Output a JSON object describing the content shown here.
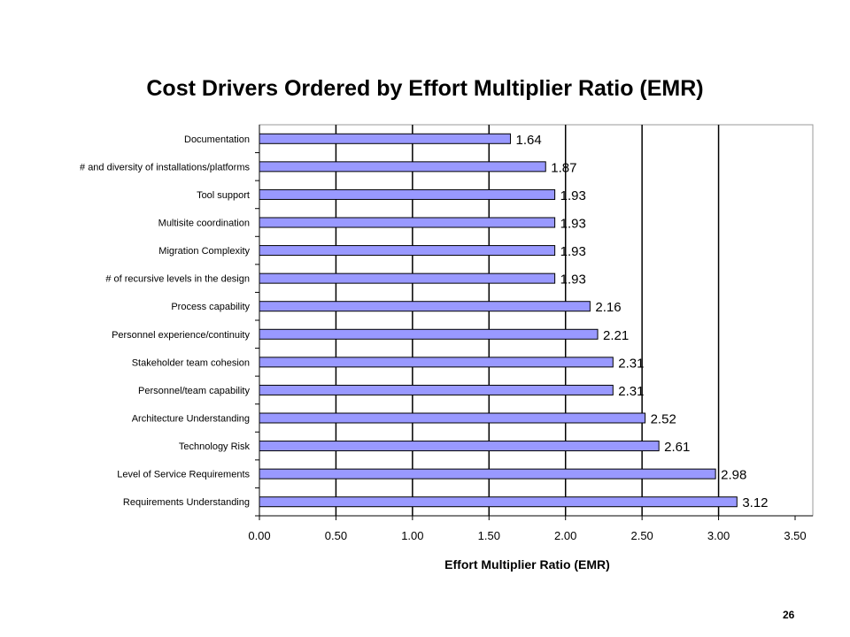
{
  "slide": {
    "title": "Cost Drivers Ordered by Effort Multiplier Ratio (EMR)",
    "page_number": "26"
  },
  "colors": {
    "bar_fill": "#9999ff",
    "bar_stroke": "#000000",
    "plot_background": "#ffffff",
    "gridline": "#000000",
    "plot_border": "#999999"
  },
  "chart_data": {
    "type": "bar",
    "orientation": "horizontal",
    "categories": [
      "Documentation",
      "# and diversity of installations/platforms",
      "Tool support",
      "Multisite coordination",
      "Migration Complexity",
      "# of recursive levels in the design",
      "Process capability",
      "Personnel experience/continuity",
      "Stakeholder team cohesion",
      "Personnel/team capability",
      "Architecture Understanding",
      "Technology Risk",
      "Level of Service Requirements",
      "Requirements Understanding"
    ],
    "values": [
      1.64,
      1.87,
      1.93,
      1.93,
      1.93,
      1.93,
      2.16,
      2.21,
      2.31,
      2.31,
      2.52,
      2.61,
      2.98,
      3.12
    ],
    "value_labels": [
      "1.64",
      "1.87",
      "1.93",
      "1.93",
      "1.93",
      "1.93",
      "2.16",
      "2.21",
      "2.31",
      "2.31",
      "2.52",
      "2.61",
      "2.98",
      "3.12"
    ],
    "xlabel": "Effort Multiplier Ratio (EMR)",
    "ylabel": "",
    "xlim": [
      0,
      3.5
    ],
    "xticks": [
      "0.00",
      "0.50",
      "1.00",
      "1.50",
      "2.00",
      "2.50",
      "3.00",
      "3.50"
    ],
    "grid": "vertical major gridlines",
    "legend": "none"
  }
}
